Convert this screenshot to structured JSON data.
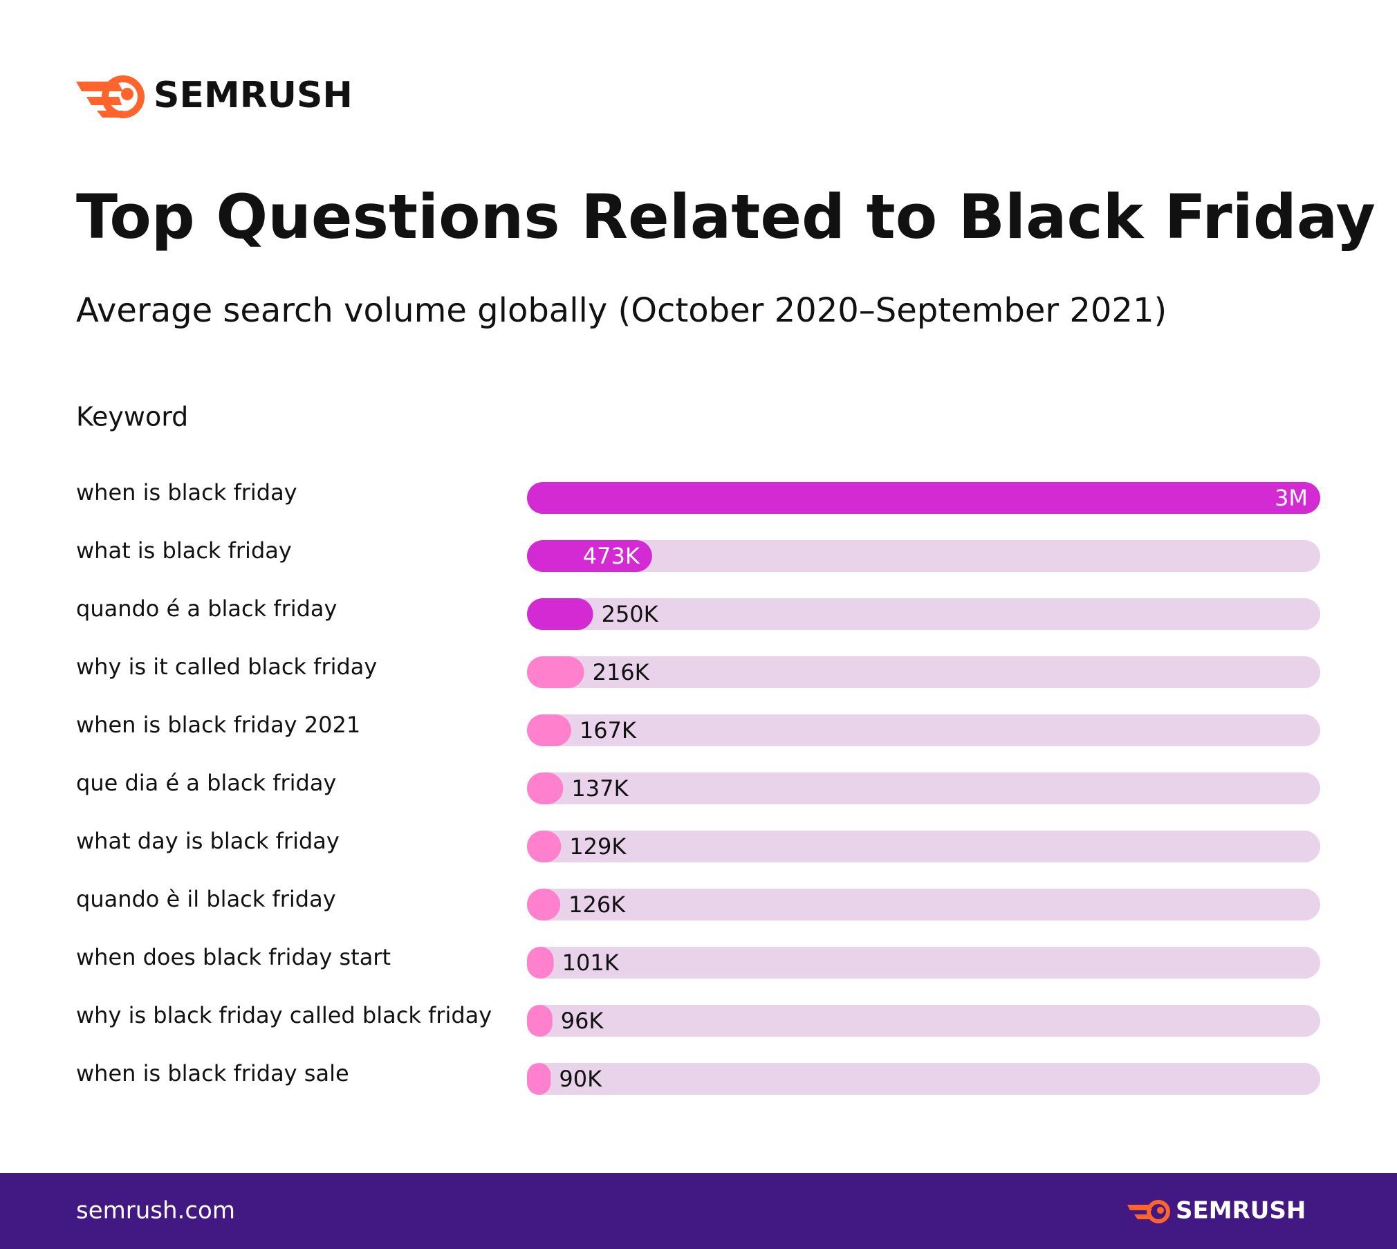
{
  "brand": "SEMRUSH",
  "footer": {
    "url": "semrush.com",
    "brand": "SEMRUSH"
  },
  "chart_data": {
    "type": "bar",
    "orientation": "horizontal",
    "title": "Top Questions Related to Black Friday",
    "subtitle": "Average search volume globally (October 2020–September 2021)",
    "category_axis_label": "Keyword",
    "categories": [
      "when is black friday",
      "what is black friday",
      "quando é a black friday",
      "why is it called black friday",
      "when is black friday 2021",
      "que dia é a black friday",
      "what day is black friday",
      "quando è il black friday",
      "when does black friday start",
      "why is black friday called black friday",
      "when is black friday sale"
    ],
    "values": [
      3000000,
      473000,
      250000,
      216000,
      167000,
      137000,
      129000,
      126000,
      101000,
      96000,
      90000
    ],
    "value_labels": [
      "3M",
      "473K",
      "250K",
      "216K",
      "167K",
      "137K",
      "129K",
      "126K",
      "101K",
      "96K",
      "90K"
    ],
    "colors": [
      "#d42ad4",
      "#d42ad4",
      "#d42ad4",
      "#ff80cc",
      "#ff80cc",
      "#ff80cc",
      "#ff80cc",
      "#ff80cc",
      "#ff80cc",
      "#ff80cc",
      "#ff80cc"
    ],
    "track_color": "#e8d3ea",
    "xlim": [
      0,
      3000000
    ]
  }
}
